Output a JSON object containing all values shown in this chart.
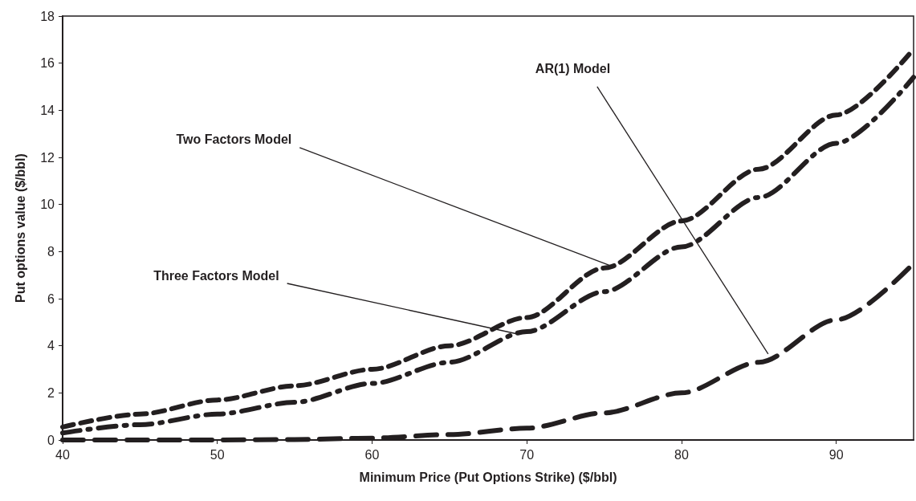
{
  "chart_data": {
    "type": "line",
    "xlabel": "Minimum Price (Put Options Strike) ($/bbl)",
    "ylabel": "Put options value ($/bbl)",
    "x": [
      40,
      45,
      50,
      55,
      60,
      65,
      70,
      75,
      80,
      85,
      90,
      95
    ],
    "series": [
      {
        "color": "#231f20",
        "line_style": "dashed",
        "values": [
          0.55,
          1.1,
          1.7,
          2.3,
          3.0,
          4.0,
          5.2,
          7.3,
          9.3,
          11.5,
          13.8,
          16.6
        ]
      },
      {
        "color": "#231f20",
        "line_style": "dashed",
        "values": [
          0.3,
          0.65,
          1.1,
          1.6,
          2.4,
          3.3,
          4.6,
          6.3,
          8.2,
          10.3,
          12.6,
          15.4
        ]
      },
      {
        "color": "#231f20",
        "line_style": "dashed",
        "values": [
          0,
          0,
          0,
          0.02,
          0.08,
          0.23,
          0.5,
          1.15,
          2.0,
          3.3,
          5.1,
          7.5
        ]
      }
    ],
    "annotations": [
      {
        "text": "Two Factors Model",
        "x": 75.4,
        "y": 7.4
      },
      {
        "text": "Three Factors Model",
        "x": 69.4,
        "y": 4.5
      },
      {
        "text": "AR(1) Model",
        "x": 85.6,
        "y": 3.65
      }
    ],
    "xlim": [
      40,
      95
    ],
    "xticks": [
      40,
      50,
      60,
      70,
      80,
      90
    ],
    "ylim": [
      0,
      18
    ],
    "yticks": [
      0,
      2,
      4,
      6,
      8,
      10,
      12,
      14,
      16,
      18
    ],
    "grid": false,
    "marker": "none"
  }
}
